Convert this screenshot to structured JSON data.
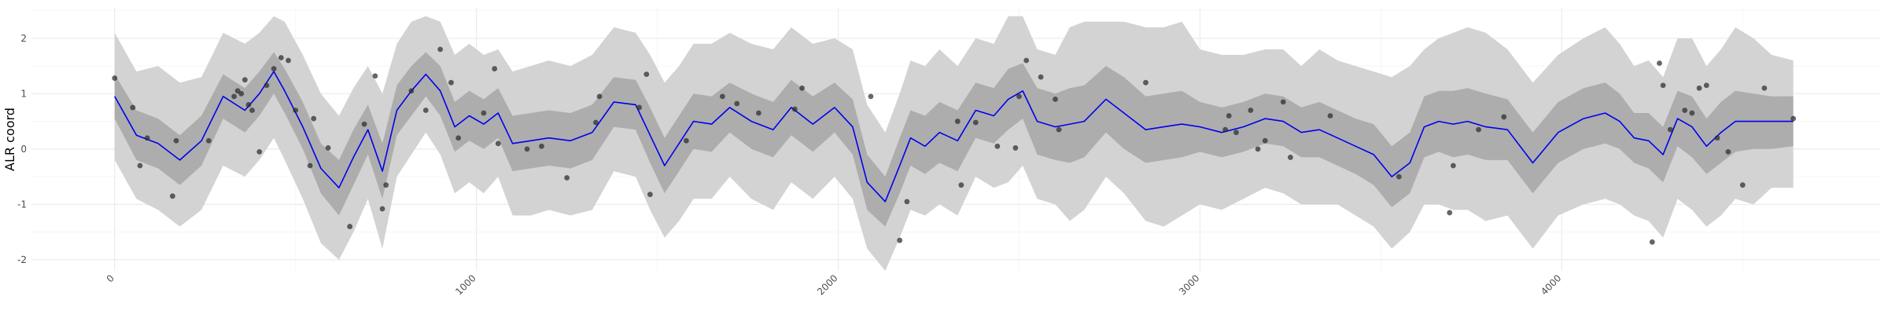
{
  "chart_data": {
    "type": "line",
    "title": "",
    "xlabel": "",
    "ylabel": "ALR coord",
    "xlim": [
      -230,
      4880
    ],
    "ylim": [
      -2.2,
      2.55
    ],
    "grid": true,
    "legend": "none",
    "x_ticks": [
      0,
      1000,
      2000,
      3000,
      4000
    ],
    "x_tick_labels": [
      "0",
      "1000",
      "2000",
      "3000",
      "4000"
    ],
    "y_ticks": [
      -2,
      -1,
      0,
      1,
      2
    ],
    "y_tick_labels": [
      "-2",
      "-1",
      "0",
      "1",
      "2"
    ],
    "colors": {
      "mean_line": "#0000ee",
      "band_95": "#d3d3d3",
      "band_50": "#adadad",
      "points": "#2b2b2b",
      "grid": "#ebebeb"
    },
    "series": [
      {
        "kind": "line",
        "x": [
          0,
          60,
          120,
          180,
          240,
          300,
          360,
          400,
          440,
          470,
          520,
          570,
          620,
          660,
          700,
          740,
          780,
          820,
          860,
          900,
          940,
          980,
          1020,
          1060,
          1100,
          1150,
          1200,
          1260,
          1320,
          1380,
          1440,
          1480,
          1520,
          1560,
          1600,
          1650,
          1700,
          1760,
          1820,
          1870,
          1930,
          1990,
          2040,
          2080,
          2130,
          2170,
          2200,
          2240,
          2280,
          2330,
          2380,
          2430,
          2470,
          2510,
          2550,
          2600,
          2640,
          2680,
          2740,
          2790,
          2850,
          2900,
          2950,
          3000,
          3060,
          3120,
          3180,
          3230,
          3280,
          3330,
          3380,
          3430,
          3480,
          3530,
          3580,
          3620,
          3660,
          3700,
          3740,
          3790,
          3850,
          3920,
          3990,
          4060,
          4120,
          4160,
          4200,
          4240,
          4280,
          4320,
          4360,
          4400,
          4440,
          4480,
          4530,
          4580,
          4640
        ],
        "y": [
          0.95,
          0.25,
          0.1,
          -0.2,
          0.15,
          0.95,
          0.7,
          1.0,
          1.4,
          1.05,
          0.4,
          -0.35,
          -0.7,
          -0.15,
          0.35,
          -0.4,
          0.7,
          1.05,
          1.35,
          1.05,
          0.4,
          0.6,
          0.45,
          0.65,
          0.1,
          0.15,
          0.2,
          0.15,
          0.3,
          0.85,
          0.8,
          0.25,
          -0.3,
          0.1,
          0.5,
          0.45,
          0.75,
          0.5,
          0.35,
          0.75,
          0.45,
          0.75,
          0.4,
          -0.6,
          -0.95,
          -0.3,
          0.2,
          0.05,
          0.3,
          0.15,
          0.7,
          0.6,
          0.9,
          1.05,
          0.5,
          0.4,
          0.45,
          0.5,
          0.9,
          0.65,
          0.35,
          0.4,
          0.45,
          0.4,
          0.3,
          0.4,
          0.55,
          0.5,
          0.3,
          0.35,
          0.2,
          0.05,
          -0.1,
          -0.5,
          -0.25,
          0.4,
          0.5,
          0.45,
          0.5,
          0.4,
          0.35,
          -0.25,
          0.3,
          0.55,
          0.65,
          0.5,
          0.2,
          0.15,
          -0.1,
          0.55,
          0.4,
          0.05,
          0.3,
          0.5,
          0.5,
          0.5,
          0.5
        ]
      },
      {
        "kind": "band",
        "name_level": "outer",
        "x": [
          0,
          60,
          120,
          180,
          240,
          300,
          360,
          400,
          440,
          470,
          520,
          570,
          620,
          660,
          700,
          740,
          780,
          820,
          860,
          900,
          940,
          980,
          1020,
          1060,
          1100,
          1150,
          1200,
          1260,
          1320,
          1380,
          1440,
          1480,
          1520,
          1560,
          1600,
          1650,
          1700,
          1760,
          1820,
          1870,
          1930,
          1990,
          2040,
          2080,
          2130,
          2170,
          2200,
          2240,
          2280,
          2330,
          2380,
          2430,
          2470,
          2510,
          2550,
          2600,
          2640,
          2680,
          2740,
          2790,
          2850,
          2900,
          2950,
          3000,
          3060,
          3120,
          3180,
          3230,
          3280,
          3330,
          3380,
          3430,
          3480,
          3530,
          3580,
          3620,
          3660,
          3700,
          3740,
          3790,
          3850,
          3920,
          3990,
          4060,
          4120,
          4160,
          4200,
          4240,
          4280,
          4320,
          4360,
          4400,
          4440,
          4480,
          4530,
          4580,
          4640
        ],
        "upper": [
          2.1,
          1.4,
          1.5,
          1.2,
          1.3,
          2.1,
          1.9,
          2.1,
          2.4,
          2.3,
          1.7,
          1.0,
          0.6,
          1.1,
          1.5,
          1.0,
          1.9,
          2.3,
          2.4,
          2.3,
          1.7,
          1.9,
          1.7,
          1.8,
          1.4,
          1.5,
          1.6,
          1.5,
          1.7,
          2.2,
          2.1,
          1.7,
          1.2,
          1.5,
          1.9,
          1.9,
          2.1,
          1.9,
          1.8,
          2.2,
          1.9,
          2.0,
          1.8,
          0.8,
          0.3,
          1.0,
          1.6,
          1.5,
          1.8,
          1.5,
          2.0,
          1.9,
          2.4,
          2.4,
          1.8,
          1.7,
          2.2,
          2.3,
          2.3,
          2.3,
          2.2,
          2.2,
          2.3,
          1.8,
          1.7,
          1.7,
          1.8,
          1.8,
          1.5,
          1.8,
          1.6,
          1.5,
          1.4,
          1.3,
          1.5,
          1.8,
          2.0,
          2.1,
          2.2,
          2.1,
          1.8,
          1.2,
          1.7,
          2.0,
          2.2,
          1.9,
          1.5,
          1.6,
          1.3,
          2.0,
          2.0,
          1.5,
          1.8,
          2.2,
          2.0,
          1.7,
          1.6
        ],
        "lower": [
          -0.2,
          -0.9,
          -1.1,
          -1.4,
          -1.1,
          -0.3,
          -0.5,
          -0.2,
          0.2,
          -0.2,
          -0.9,
          -1.7,
          -2.0,
          -1.5,
          -0.9,
          -1.8,
          -0.5,
          -0.1,
          0.3,
          -0.1,
          -0.8,
          -0.6,
          -0.8,
          -0.5,
          -1.2,
          -1.2,
          -1.1,
          -1.2,
          -1.1,
          -0.4,
          -0.5,
          -1.1,
          -1.6,
          -1.3,
          -0.9,
          -0.9,
          -0.5,
          -0.9,
          -1.1,
          -0.6,
          -0.9,
          -0.5,
          -0.9,
          -1.8,
          -2.2,
          -1.6,
          -1.1,
          -1.2,
          -1.0,
          -1.2,
          -0.5,
          -0.7,
          -0.6,
          -0.3,
          -0.9,
          -1.0,
          -1.3,
          -1.1,
          -0.5,
          -0.8,
          -1.3,
          -1.4,
          -1.2,
          -1.0,
          -1.1,
          -0.9,
          -0.7,
          -0.8,
          -1.0,
          -1.0,
          -1.0,
          -1.2,
          -1.4,
          -1.8,
          -1.5,
          -1.0,
          -1.0,
          -1.1,
          -1.1,
          -1.3,
          -1.2,
          -1.8,
          -1.2,
          -1.0,
          -0.9,
          -1.0,
          -1.2,
          -1.3,
          -1.6,
          -0.9,
          -1.1,
          -1.4,
          -1.2,
          -0.9,
          -1.0,
          -0.7,
          -0.7
        ]
      },
      {
        "kind": "band",
        "name_level": "inner",
        "x": [
          0,
          60,
          120,
          180,
          240,
          300,
          360,
          400,
          440,
          470,
          520,
          570,
          620,
          660,
          700,
          740,
          780,
          820,
          860,
          900,
          940,
          980,
          1020,
          1060,
          1100,
          1150,
          1200,
          1260,
          1320,
          1380,
          1440,
          1480,
          1520,
          1560,
          1600,
          1650,
          1700,
          1760,
          1820,
          1870,
          1930,
          1990,
          2040,
          2080,
          2130,
          2170,
          2200,
          2240,
          2280,
          2330,
          2380,
          2430,
          2470,
          2510,
          2550,
          2600,
          2640,
          2680,
          2740,
          2790,
          2850,
          2900,
          2950,
          3000,
          3060,
          3120,
          3180,
          3230,
          3280,
          3330,
          3380,
          3430,
          3480,
          3530,
          3580,
          3620,
          3660,
          3700,
          3740,
          3790,
          3850,
          3920,
          3990,
          4060,
          4120,
          4160,
          4200,
          4240,
          4280,
          4320,
          4360,
          4400,
          4440,
          4480,
          4530,
          4580,
          4640
        ],
        "upper": [
          1.35,
          0.7,
          0.55,
          0.25,
          0.6,
          1.35,
          1.1,
          1.4,
          1.75,
          1.45,
          0.85,
          0.1,
          -0.2,
          0.35,
          0.8,
          0.1,
          1.15,
          1.5,
          1.75,
          1.5,
          0.85,
          1.05,
          0.9,
          1.1,
          0.6,
          0.65,
          0.7,
          0.65,
          0.8,
          1.3,
          1.25,
          0.75,
          0.2,
          0.6,
          1.0,
          0.95,
          1.2,
          1.0,
          0.85,
          1.25,
          0.95,
          1.2,
          0.9,
          -0.1,
          -0.5,
          0.2,
          0.7,
          0.6,
          0.85,
          0.7,
          1.2,
          1.1,
          1.45,
          1.55,
          1.1,
          1.0,
          1.1,
          1.15,
          1.5,
          1.3,
          0.95,
          1.0,
          1.05,
          0.85,
          0.75,
          0.85,
          1.0,
          0.95,
          0.75,
          0.85,
          0.7,
          0.55,
          0.45,
          0.05,
          0.3,
          0.95,
          1.05,
          1.05,
          1.1,
          1.0,
          0.9,
          0.3,
          0.85,
          1.1,
          1.2,
          1.0,
          0.65,
          0.65,
          0.4,
          1.05,
          0.95,
          0.55,
          0.85,
          1.05,
          1.0,
          0.95,
          0.95
        ],
        "lower": [
          0.55,
          -0.2,
          -0.35,
          -0.65,
          -0.3,
          0.55,
          0.3,
          0.6,
          1.0,
          0.65,
          0.0,
          -0.8,
          -1.2,
          -0.65,
          -0.1,
          -0.9,
          0.25,
          0.6,
          0.95,
          0.6,
          -0.05,
          0.15,
          0.0,
          0.2,
          -0.4,
          -0.35,
          -0.3,
          -0.35,
          -0.2,
          0.4,
          0.35,
          -0.25,
          -0.8,
          -0.4,
          0.0,
          -0.05,
          0.3,
          0.0,
          -0.15,
          0.25,
          -0.05,
          0.3,
          -0.1,
          -1.1,
          -1.4,
          -0.8,
          -0.3,
          -0.45,
          -0.25,
          -0.4,
          0.2,
          0.1,
          0.35,
          0.55,
          -0.1,
          -0.2,
          -0.25,
          -0.15,
          0.3,
          0.0,
          -0.25,
          -0.2,
          -0.15,
          -0.05,
          -0.15,
          -0.05,
          0.1,
          0.05,
          -0.15,
          -0.15,
          -0.3,
          -0.45,
          -0.65,
          -1.05,
          -0.8,
          -0.15,
          -0.05,
          -0.15,
          -0.1,
          -0.2,
          -0.2,
          -0.8,
          -0.25,
          0.0,
          0.1,
          0.0,
          -0.25,
          -0.35,
          -0.6,
          0.05,
          -0.15,
          -0.45,
          -0.25,
          -0.05,
          0.0,
          0.0,
          0.05
        ]
      },
      {
        "kind": "points",
        "x": [
          0,
          50,
          70,
          90,
          160,
          170,
          260,
          330,
          340,
          350,
          360,
          370,
          380,
          400,
          420,
          440,
          460,
          480,
          500,
          540,
          550,
          590,
          650,
          690,
          720,
          740,
          750,
          820,
          860,
          900,
          930,
          950,
          1020,
          1050,
          1060,
          1140,
          1180,
          1250,
          1330,
          1340,
          1450,
          1470,
          1480,
          1580,
          1680,
          1720,
          1780,
          1880,
          1900,
          2090,
          2170,
          2190,
          2330,
          2340,
          2380,
          2440,
          2490,
          2500,
          2520,
          2560,
          2600,
          2610,
          2850,
          3070,
          3080,
          3100,
          3140,
          3160,
          3180,
          3230,
          3250,
          3360,
          3550,
          3690,
          3700,
          3770,
          3840,
          4250,
          4270,
          4280,
          4300,
          4340,
          4360,
          4380,
          4400,
          4430,
          4460,
          4500,
          4560,
          4640
        ],
        "y": [
          1.28,
          0.75,
          -0.3,
          0.2,
          -0.85,
          0.15,
          0.15,
          0.95,
          1.05,
          1.0,
          1.25,
          0.8,
          0.7,
          -0.05,
          1.15,
          1.45,
          1.65,
          1.6,
          0.7,
          -0.3,
          0.55,
          0.02,
          -1.4,
          0.45,
          1.32,
          -1.08,
          -0.65,
          1.05,
          0.7,
          1.8,
          1.2,
          0.2,
          0.65,
          1.45,
          0.1,
          0.0,
          0.05,
          -0.52,
          0.48,
          0.95,
          0.75,
          1.35,
          -0.82,
          0.15,
          0.95,
          0.82,
          0.65,
          0.72,
          1.1,
          0.95,
          -1.65,
          -0.95,
          0.5,
          -0.65,
          0.48,
          0.05,
          0.02,
          0.95,
          1.6,
          1.3,
          0.9,
          0.35,
          1.2,
          0.35,
          0.6,
          0.3,
          0.7,
          0.0,
          0.15,
          0.85,
          -0.15,
          0.6,
          -0.5,
          -1.15,
          -0.3,
          0.35,
          0.58,
          -1.68,
          1.55,
          1.15,
          0.35,
          0.7,
          0.65,
          1.1,
          1.15,
          0.2,
          -0.05,
          -0.65,
          1.1,
          0.55
        ]
      }
    ]
  }
}
